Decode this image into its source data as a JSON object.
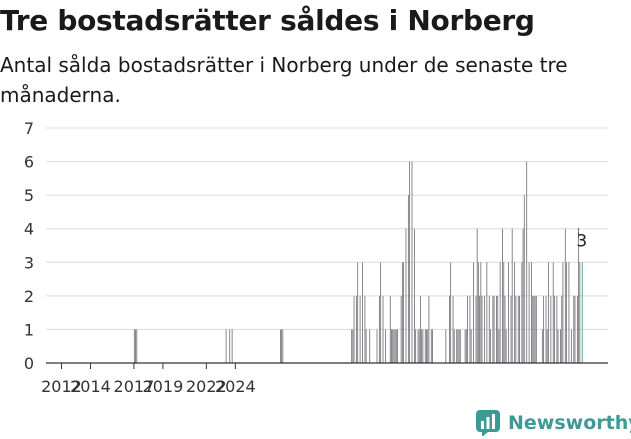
{
  "header": {
    "title": "Tre bostadsrätter såldes i Norberg",
    "subtitle": "Antal sålda bostadsrätter i Norberg under de senaste tre månaderna."
  },
  "brand": {
    "name": "Newsworthy"
  },
  "colors": {
    "bar": "#76767c",
    "highlight": "#3d9a94",
    "grid": "#dcdcdc",
    "axis": "#333333",
    "annotation": "#555555"
  },
  "chart_data": {
    "type": "bar",
    "title": "Tre bostadsrätter såldes i Norberg",
    "subtitle": "Antal sålda bostadsrätter i Norberg under de senaste tre månaderna.",
    "xlabel": "",
    "ylabel": "",
    "ylim": [
      0,
      7
    ],
    "yticks": [
      "0",
      "1",
      "2",
      "3",
      "4",
      "5",
      "6",
      "7"
    ],
    "xticks": [
      {
        "label": "2012",
        "year": 2012
      },
      {
        "label": "2014",
        "year": 2014
      },
      {
        "label": "2017",
        "year": 2017
      },
      {
        "label": "2019",
        "year": 2019
      },
      {
        "label": "2022",
        "year": 2022
      },
      {
        "label": "2024",
        "year": 2024
      }
    ],
    "x_start": {
      "year": 2011,
      "month": 1
    },
    "grid": true,
    "annotation": {
      "label": "3",
      "value": 3
    },
    "series": [
      {
        "name": "Antal sålda bostadsrätter",
        "values": [
          0,
          0,
          0,
          0,
          0,
          0,
          0,
          0,
          0,
          0,
          0,
          0,
          0,
          0,
          0,
          0,
          0,
          0,
          0,
          0,
          0,
          0,
          0,
          0,
          0,
          0,
          0,
          0,
          0,
          0,
          0,
          0,
          0,
          0,
          0,
          0,
          0,
          0,
          0,
          0,
          0,
          0,
          0,
          0,
          0,
          0,
          0,
          0,
          0,
          0,
          0,
          0,
          0,
          0,
          0,
          0,
          0,
          0,
          0,
          0,
          0,
          0,
          0,
          0,
          0,
          0,
          0,
          0,
          0,
          0,
          0,
          0,
          1,
          1,
          1,
          0,
          0,
          0,
          0,
          0,
          0,
          0,
          0,
          0,
          0,
          0,
          0,
          0,
          0,
          0,
          0,
          0,
          0,
          0,
          0,
          0,
          0,
          0,
          0,
          0,
          0,
          0,
          0,
          0,
          0,
          0,
          0,
          0,
          0,
          0,
          0,
          0,
          0,
          0,
          0,
          0,
          0,
          0,
          0,
          0,
          0,
          0,
          0,
          0,
          0,
          0,
          0,
          0,
          0,
          0,
          0,
          0,
          0,
          0,
          0,
          0,
          0,
          0,
          0,
          0,
          0,
          0,
          0,
          0,
          0,
          0,
          0,
          0,
          1,
          0,
          0,
          1,
          0,
          1,
          0,
          0,
          0,
          0,
          0,
          0,
          0,
          0,
          0,
          0,
          0,
          0,
          0,
          0,
          0,
          0,
          0,
          0,
          0,
          0,
          0,
          0,
          0,
          0,
          0,
          0,
          0,
          0,
          0,
          0,
          0,
          0,
          0,
          0,
          0,
          0,
          0,
          0,
          0,
          1,
          1,
          1,
          0,
          0,
          0,
          0,
          0,
          0,
          0,
          0,
          0,
          0,
          0,
          0,
          0,
          0,
          0,
          0,
          0,
          0,
          0,
          0,
          0,
          0,
          0,
          0,
          0,
          0,
          0,
          0,
          0,
          0,
          0,
          0,
          0,
          0,
          0,
          0,
          0,
          0,
          0,
          0,
          0,
          0,
          0,
          0,
          0,
          0,
          0,
          0,
          0,
          0,
          0,
          0,
          0,
          0,
          0,
          0,
          1,
          1,
          2,
          0,
          2,
          3,
          0,
          2,
          0,
          3,
          0,
          2,
          1,
          0,
          0,
          1,
          0,
          0,
          0,
          0,
          0,
          1,
          0,
          2,
          3,
          0,
          2,
          0,
          1,
          0,
          0,
          0,
          2,
          1,
          1,
          1,
          1,
          1,
          1,
          0,
          0,
          2,
          3,
          3,
          0,
          4,
          0,
          5,
          6,
          0,
          6,
          0,
          4,
          1,
          0,
          1,
          1,
          2,
          1,
          1,
          0,
          1,
          1,
          1,
          2,
          0,
          1,
          1,
          0,
          0,
          0,
          0,
          0,
          0,
          0,
          0,
          0,
          0,
          1,
          0,
          0,
          2,
          3,
          0,
          2,
          1,
          0,
          1,
          1,
          1,
          1,
          0,
          0,
          0,
          1,
          1,
          2,
          0,
          2,
          1,
          0,
          3,
          0,
          2,
          4,
          3,
          2,
          3,
          2,
          0,
          2,
          0,
          3,
          0,
          2,
          1,
          0,
          2,
          2,
          0,
          2,
          2,
          1,
          3,
          0,
          4,
          3,
          2,
          1,
          0,
          3,
          0,
          2,
          4,
          0,
          3,
          2,
          0,
          2,
          2,
          0,
          3,
          4,
          5,
          0,
          6,
          0,
          3,
          0,
          3,
          2,
          2,
          2,
          2,
          0,
          0,
          0,
          0,
          1,
          2,
          0,
          2,
          1,
          3,
          0,
          2,
          0,
          3,
          2,
          0,
          2,
          1,
          0,
          1,
          2,
          3,
          0,
          4,
          3,
          0,
          3,
          0,
          1,
          0,
          2,
          2,
          0,
          2,
          4,
          3,
          0,
          3
        ]
      }
    ]
  }
}
